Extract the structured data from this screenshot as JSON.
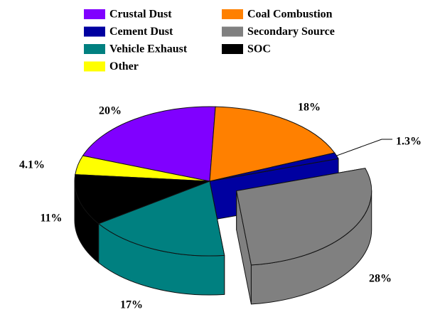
{
  "chart_data": {
    "type": "pie3d",
    "categories": [
      "Crustal Dust",
      "Coal Combustion",
      "Cement Dust",
      "Secondary Source",
      "Vehicle Exhaust",
      "SOC",
      "Other"
    ],
    "values": [
      20,
      18,
      1.3,
      28,
      17,
      11,
      4.1
    ],
    "value_labels": [
      "20%",
      "18%",
      "1.3%",
      "28%",
      "17%",
      "11%",
      "4.1%"
    ],
    "colors": [
      "#8000ff",
      "#ff8000",
      "#0000a0",
      "#808080",
      "#008080",
      "#000000",
      "#ffff00"
    ],
    "exploded": "Secondary Source",
    "legend": "top"
  }
}
